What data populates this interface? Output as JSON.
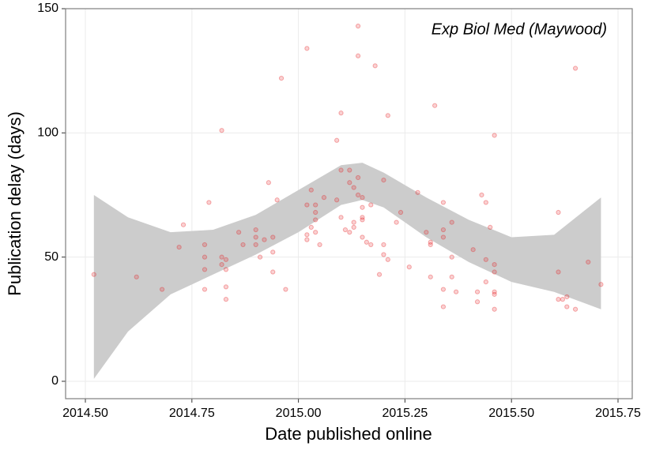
{
  "chart_data": {
    "type": "scatter",
    "annotation": "Exp Biol Med (Maywood)",
    "xlabel": "Date published online",
    "ylabel": "Publication delay (days)",
    "xlim": [
      2014.4536,
      2015.7834
    ],
    "ylim": [
      -7,
      150
    ],
    "xticks": [
      {
        "value": 2014.5,
        "label": "2014.50"
      },
      {
        "value": 2014.75,
        "label": "2014.75"
      },
      {
        "value": 2015,
        "label": "2015.00"
      },
      {
        "value": 2015.25,
        "label": "2015.25"
      },
      {
        "value": 2015.5,
        "label": "2015.50"
      },
      {
        "value": 2015.75,
        "label": "2015.75"
      }
    ],
    "yticks": [
      0,
      50,
      100,
      150
    ],
    "grid": true,
    "color": "#e41a1c",
    "x": [
      2014.52,
      2014.62,
      2014.68,
      2014.72,
      2014.73,
      2014.78,
      2014.78,
      2014.78,
      2014.78,
      2014.79,
      2014.82,
      2014.82,
      2014.82,
      2014.83,
      2014.83,
      2014.83,
      2014.83,
      2014.86,
      2014.87,
      2014.9,
      2014.9,
      2014.9,
      2014.91,
      2014.92,
      2014.93,
      2014.94,
      2014.94,
      2014.94,
      2014.95,
      2014.96,
      2014.97,
      2015.02,
      2015.02,
      2015.02,
      2015.02,
      2015.03,
      2015.03,
      2015.04,
      2015.04,
      2015.04,
      2015.04,
      2015.05,
      2015.06,
      2015.09,
      2015.09,
      2015.1,
      2015.1,
      2015.1,
      2015.11,
      2015.12,
      2015.12,
      2015.12,
      2015.13,
      2015.13,
      2015.13,
      2015.14,
      2015.14,
      2015.14,
      2015.14,
      2015.15,
      2015.15,
      2015.15,
      2015.15,
      2015.15,
      2015.16,
      2015.17,
      2015.17,
      2015.18,
      2015.19,
      2015.2,
      2015.2,
      2015.2,
      2015.21,
      2015.21,
      2015.23,
      2015.24,
      2015.26,
      2015.28,
      2015.3,
      2015.31,
      2015.31,
      2015.31,
      2015.32,
      2015.34,
      2015.34,
      2015.34,
      2015.34,
      2015.34,
      2015.36,
      2015.36,
      2015.36,
      2015.37,
      2015.41,
      2015.42,
      2015.42,
      2015.43,
      2015.44,
      2015.44,
      2015.44,
      2015.45,
      2015.46,
      2015.46,
      2015.46,
      2015.46,
      2015.46,
      2015.46,
      2015.61,
      2015.61,
      2015.61,
      2015.62,
      2015.63,
      2015.63,
      2015.65,
      2015.65,
      2015.68,
      2015.71
    ],
    "values": [
      43,
      42,
      37,
      54,
      63,
      55,
      50,
      45,
      37,
      72,
      101,
      50,
      47,
      49,
      45,
      38,
      33,
      60,
      55,
      61,
      58,
      55,
      50,
      57,
      80,
      58,
      52,
      44,
      73,
      122,
      37,
      134,
      71,
      59,
      57,
      77,
      62,
      68,
      60,
      65,
      71,
      55,
      74,
      97,
      73,
      85,
      66,
      108,
      61,
      85,
      80,
      60,
      62,
      64,
      78,
      143,
      131,
      82,
      75,
      74,
      70,
      66,
      65,
      58,
      56,
      71,
      55,
      127,
      43,
      81,
      55,
      51,
      107,
      49,
      64,
      68,
      46,
      76,
      60,
      56,
      55,
      42,
      111,
      72,
      61,
      58,
      37,
      30,
      64,
      50,
      42,
      36,
      53,
      36,
      32,
      75,
      72,
      49,
      40,
      62,
      99,
      47,
      44,
      36,
      35,
      29,
      68,
      44,
      33,
      33,
      34,
      30,
      126,
      29,
      48,
      39
    ],
    "band": {
      "color": "#cccccc",
      "x": [
        2014.52,
        2014.6,
        2014.7,
        2014.8,
        2014.9,
        2015.0,
        2015.1,
        2015.15,
        2015.2,
        2015.3,
        2015.4,
        2015.5,
        2015.6,
        2015.71
      ],
      "upper": [
        75,
        66,
        60,
        61,
        67,
        77,
        87,
        88,
        84,
        74,
        65,
        58,
        59,
        74
      ],
      "lower": [
        1,
        20,
        35,
        43,
        51,
        60,
        71,
        73,
        70,
        58,
        48,
        40,
        36,
        29
      ]
    }
  }
}
